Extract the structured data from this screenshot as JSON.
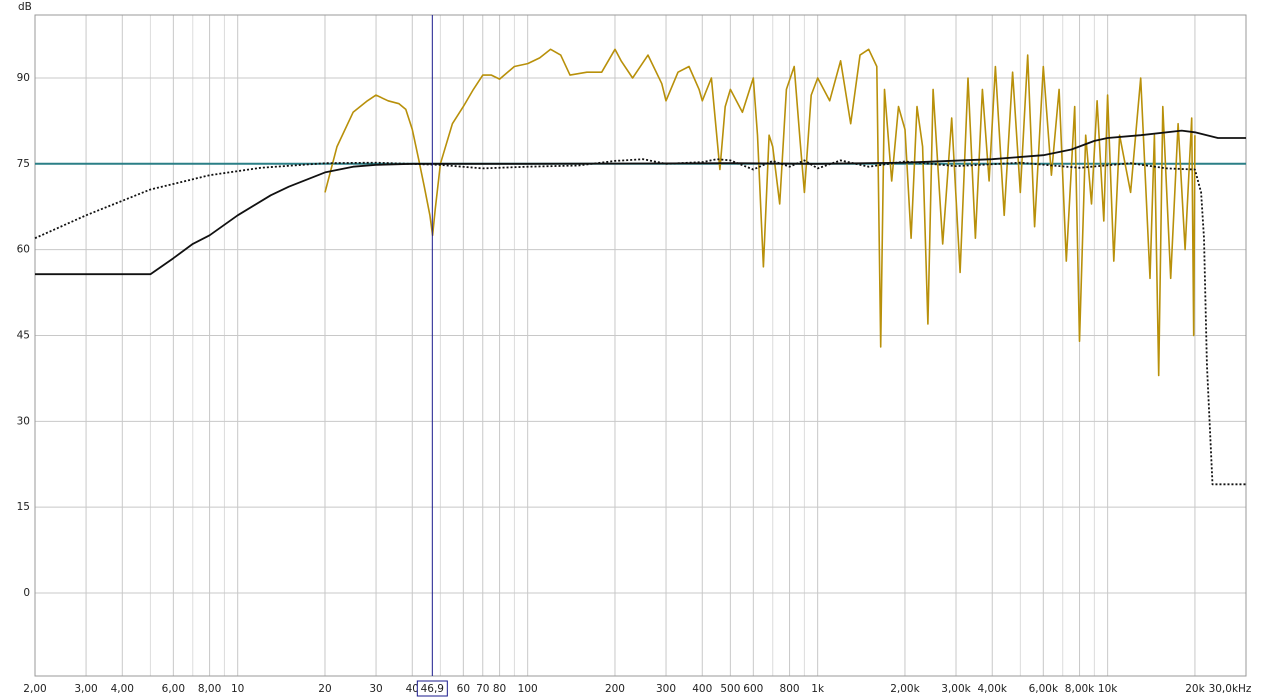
{
  "chart_data": {
    "type": "line",
    "y_label": "dB",
    "xscale": "log",
    "xlim": [
      2,
      30000
    ],
    "ylim": [
      -14.5,
      101
    ],
    "yticks": [
      0,
      15,
      30,
      45,
      60,
      75,
      90
    ],
    "xticks": [
      {
        "value": 2,
        "label": "2,00"
      },
      {
        "value": 3,
        "label": "3,00"
      },
      {
        "value": 4,
        "label": "4,00"
      },
      {
        "value": 6,
        "label": "6,00"
      },
      {
        "value": 8,
        "label": "8,00"
      },
      10,
      20,
      30,
      40,
      60,
      70,
      80,
      100,
      200,
      300,
      400,
      500,
      600,
      800,
      {
        "value": 1000,
        "label": "1k"
      },
      {
        "value": 2000,
        "label": "2,00k"
      },
      {
        "value": 3000,
        "label": "3,00k"
      },
      {
        "value": 4000,
        "label": "4,00k"
      },
      {
        "value": 6000,
        "label": "6,00k"
      },
      {
        "value": 8000,
        "label": "8,00k"
      },
      {
        "value": 10000,
        "label": "10k"
      },
      {
        "value": 20000,
        "label": "20k"
      },
      {
        "value": 30000,
        "label": "30,0kHz"
      }
    ],
    "x_minor_grid": [
      5,
      7,
      9,
      50,
      90,
      700,
      900,
      5000,
      7000,
      9000
    ],
    "grid": true,
    "cursor": {
      "value": 46.9,
      "label": "46,9",
      "color": "#1a1a8c"
    },
    "series": [
      {
        "color": "#2a7f86",
        "width": 2,
        "dash": "none",
        "x": [
          2,
          30000
        ],
        "values": [
          75,
          75
        ]
      },
      {
        "color": "#b8900a",
        "width": 1.6,
        "dash": "none",
        "x": [
          20,
          22,
          25,
          28,
          30,
          33,
          36,
          38,
          40,
          42,
          44,
          46,
          47,
          48,
          50,
          55,
          60,
          65,
          70,
          75,
          80,
          90,
          100,
          110,
          120,
          130,
          140,
          160,
          180,
          200,
          210,
          230,
          260,
          290,
          300,
          330,
          360,
          390,
          400,
          430,
          460,
          480,
          500,
          550,
          600,
          620,
          650,
          680,
          700,
          740,
          780,
          830,
          870,
          900,
          950,
          1000,
          1100,
          1200,
          1300,
          1400,
          1500,
          1600,
          1650,
          1700,
          1800,
          1900,
          2000,
          2100,
          2200,
          2300,
          2400,
          2500,
          2700,
          2900,
          3100,
          3300,
          3500,
          3700,
          3900,
          4100,
          4400,
          4700,
          5000,
          5300,
          5600,
          6000,
          6400,
          6800,
          7200,
          7700,
          8000,
          8400,
          8800,
          9200,
          9700,
          10000,
          10500,
          11000,
          12000,
          13000,
          14000,
          14500,
          15000,
          15500,
          16500,
          17500,
          18500,
          19500,
          19800,
          20000
        ],
        "values": [
          70,
          78,
          84,
          86,
          87,
          86,
          85.5,
          84.5,
          81,
          76,
          71,
          66,
          62.5,
          67,
          75,
          82,
          85,
          88,
          90.5,
          90.5,
          89.8,
          92,
          92.5,
          93.5,
          95,
          94,
          90.5,
          91,
          91,
          95,
          93,
          90,
          94,
          89,
          86,
          91,
          92,
          88,
          86,
          90,
          74,
          85,
          88,
          84,
          90,
          80,
          57,
          80,
          78,
          68,
          88,
          92,
          79,
          70,
          87,
          90,
          86,
          93,
          82,
          94,
          95,
          92,
          43,
          88,
          72,
          85,
          81,
          62,
          85,
          78,
          47,
          88,
          61,
          83,
          56,
          90,
          62,
          88,
          72,
          92,
          66,
          91,
          70,
          94,
          64,
          92,
          73,
          88,
          58,
          85,
          44,
          80,
          68,
          86,
          65,
          87,
          58,
          80,
          70,
          90,
          55,
          80,
          38,
          85,
          55,
          82,
          60,
          83,
          45,
          80
        ]
      },
      {
        "color": "#111111",
        "width": 1.8,
        "dash": "none",
        "x": [
          2,
          5,
          6,
          7,
          8,
          10,
          13,
          15,
          20,
          25,
          30,
          40,
          100,
          500,
          1000,
          2000,
          4000,
          6000,
          7500,
          9000,
          10000,
          13000,
          18000,
          20000,
          24000,
          30000
        ],
        "values": [
          55.7,
          55.7,
          58.5,
          61,
          62.5,
          66,
          69.5,
          71,
          73.5,
          74.5,
          74.8,
          75,
          75,
          75.1,
          75,
          75.2,
          75.8,
          76.5,
          77.5,
          79,
          79.5,
          80,
          80.8,
          80.5,
          79.5,
          79.5
        ]
      },
      {
        "color": "#111111",
        "width": 1.8,
        "dash": "2,2",
        "x": [
          2,
          3,
          5,
          8,
          12,
          20,
          30,
          50,
          70,
          100,
          150,
          200,
          250,
          300,
          400,
          450,
          500,
          600,
          700,
          800,
          900,
          1000,
          1200,
          1500,
          2000,
          3000,
          5000,
          8000,
          12000,
          16000,
          20000,
          21000,
          21500,
          22000,
          23000,
          30000
        ],
        "values": [
          62,
          66,
          70.5,
          73,
          74.3,
          75.1,
          75.2,
          74.8,
          74.2,
          74.5,
          74.7,
          75.5,
          75.8,
          75,
          75.3,
          75.8,
          75.6,
          74,
          75.5,
          74.5,
          75.6,
          74.2,
          75.6,
          74.5,
          75.4,
          74.6,
          75.2,
          74.3,
          75.1,
          74.2,
          74,
          70,
          62,
          40,
          19,
          19
        ]
      }
    ]
  }
}
